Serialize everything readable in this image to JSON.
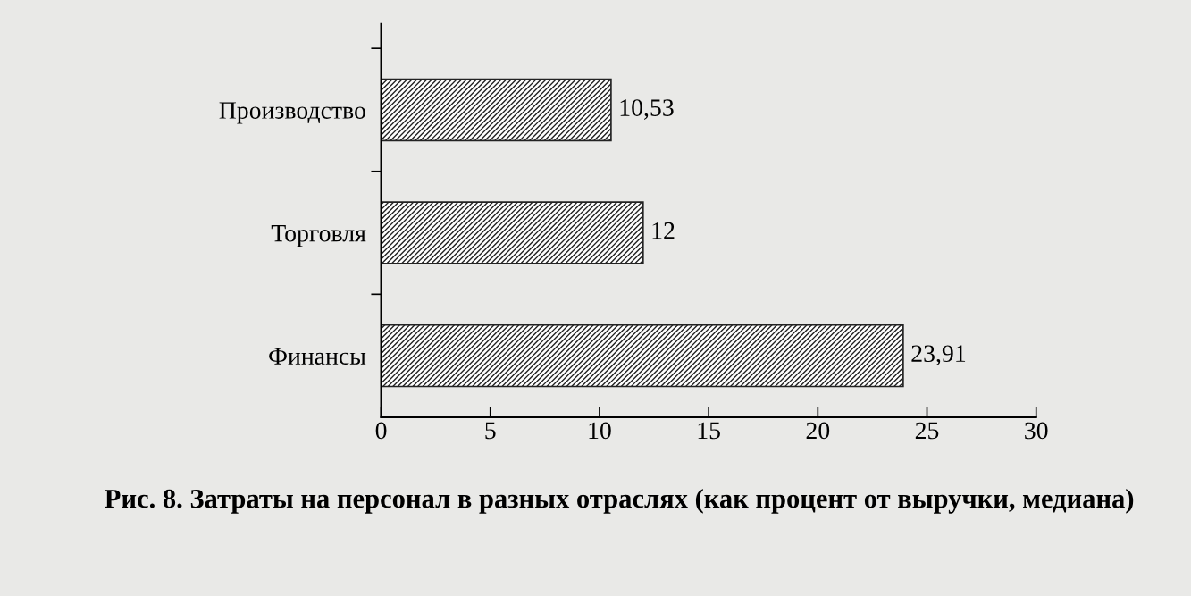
{
  "chart_data": {
    "type": "bar",
    "orientation": "horizontal",
    "title": "Рис. 8. Затраты на персонал в разных отраслях (как процент от выручки, медиана)",
    "categories": [
      "Производство",
      "Торговля",
      "Финансы"
    ],
    "values": [
      10.53,
      12,
      23.91
    ],
    "value_labels": [
      "10,53",
      "12",
      "23,91"
    ],
    "color": "#222222",
    "xlim": [
      0,
      30
    ],
    "xticks": [
      0,
      5,
      10,
      15,
      20,
      25,
      30
    ],
    "grid": false,
    "legend": false
  }
}
